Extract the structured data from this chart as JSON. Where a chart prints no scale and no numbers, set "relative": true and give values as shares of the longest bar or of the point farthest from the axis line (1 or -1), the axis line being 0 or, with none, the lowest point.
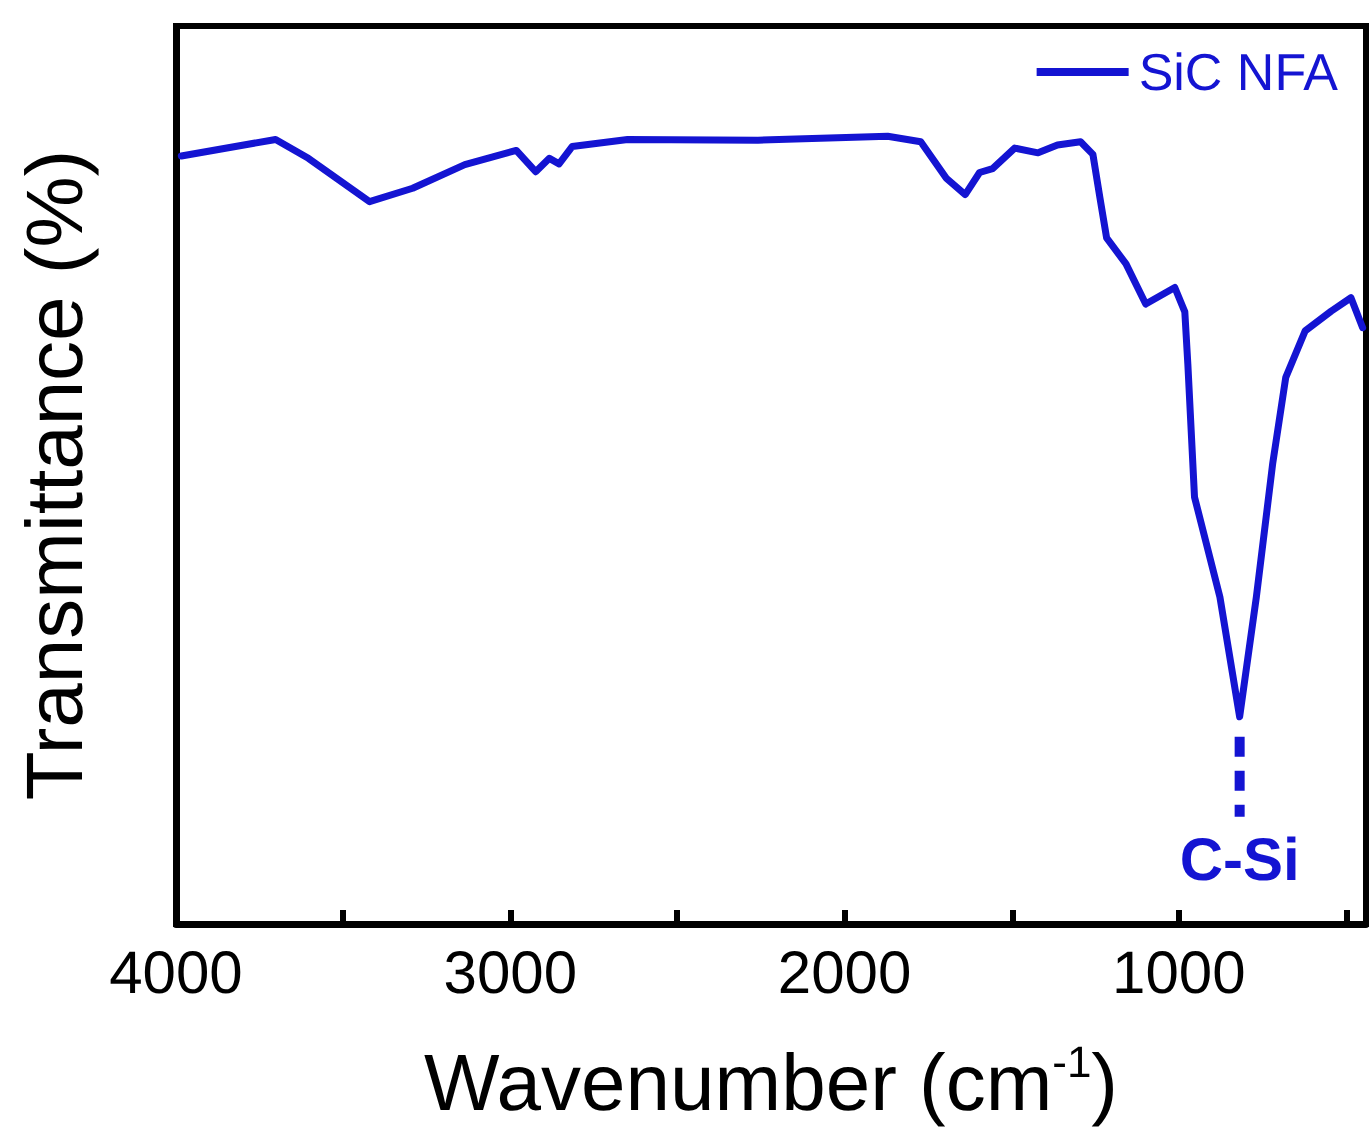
{
  "chart_data": {
    "type": "line",
    "xlabel": "Wavenumber (cm$^{-1}$)",
    "ylabel": "Transmittance (%)",
    "relative": true,
    "tick_labels": "x",
    "legend": "top right",
    "x": [
      3984,
      3702,
      3604,
      3421,
      3292,
      3136,
      2982,
      2924,
      2883,
      2854,
      2815,
      2649,
      2259,
      1871,
      1772,
      1696,
      1639,
      1596,
      1557,
      1491,
      1421,
      1363,
      1294,
      1257,
      1236,
      1216,
      1158,
      1099,
      1012,
      982,
      973,
      953,
      877,
      818,
      768,
      719,
      680,
      622,
      544,
      485,
      450
    ],
    "series": [
      {
        "name": "SiC NFA",
        "color": "#1414d2",
        "values": [
          0.975,
          0.996,
          0.972,
          0.917,
          0.934,
          0.964,
          0.982,
          0.955,
          0.972,
          0.965,
          0.987,
          0.996,
          0.995,
          1,
          0.993,
          0.947,
          0.926,
          0.954,
          0.959,
          0.985,
          0.979,
          0.989,
          0.993,
          0.977,
          0.922,
          0.871,
          0.838,
          0.787,
          0.808,
          0.777,
          0.711,
          0.542,
          0.415,
          0.263,
          0.415,
          0.585,
          0.694,
          0.753,
          0.778,
          0.795,
          0.757
        ]
      }
    ],
    "xlim": [
      4000,
      440
    ],
    "xticks": [
      4000,
      {
        "value": 3500,
        "label": null
      },
      3000,
      {
        "value": 2500,
        "label": null
      },
      2000,
      {
        "value": 1500,
        "label": null
      },
      1000,
      {
        "value": 500,
        "label": null
      }
    ],
    "annotations": [
      {
        "text": "C-Si",
        "x": 818,
        "y": 0.263
      }
    ]
  }
}
